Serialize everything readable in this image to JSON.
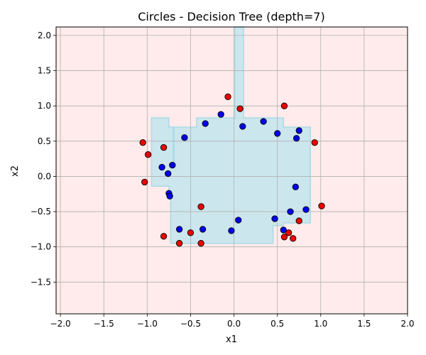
{
  "chart_data": {
    "type": "scatter",
    "title": "Circles - Decision Tree (depth=7)",
    "xlabel": "x1",
    "ylabel": "x2",
    "xlim": [
      -2.05,
      2.0
    ],
    "ylim": [
      -1.95,
      2.12
    ],
    "xticks": [
      -2.0,
      -1.5,
      -1.0,
      -0.5,
      0.0,
      0.5,
      1.0,
      1.5,
      2.0
    ],
    "xtick_labels": [
      "−2.0",
      "−1.5",
      "−1.0",
      "−0.5",
      "0.0",
      "0.5",
      "1.0",
      "1.5",
      "2.0"
    ],
    "yticks": [
      -1.5,
      -1.0,
      -0.5,
      0.0,
      0.5,
      1.0,
      1.5,
      2.0
    ],
    "ytick_labels": [
      "−1.5",
      "−1.0",
      "−0.5",
      "0.0",
      "0.5",
      "1.0",
      "1.5",
      "2.0"
    ],
    "grid": true,
    "background_color": "#ffebeb",
    "region_color": "#cce6ee",
    "region_edge_color": "#a8dbe6",
    "decision_region": [
      [
        0.01,
        2.12
      ],
      [
        0.11,
        2.12
      ],
      [
        0.11,
        0.83
      ],
      [
        0.57,
        0.83
      ],
      [
        0.57,
        0.7
      ],
      [
        0.88,
        0.7
      ],
      [
        0.88,
        -0.66
      ],
      [
        0.57,
        -0.66
      ],
      [
        0.57,
        -0.7
      ],
      [
        0.45,
        -0.7
      ],
      [
        0.45,
        -0.95
      ],
      [
        -0.73,
        -0.95
      ],
      [
        -0.73,
        -0.32
      ],
      [
        -0.75,
        -0.32
      ],
      [
        -0.75,
        -0.14
      ],
      [
        -0.95,
        -0.14
      ],
      [
        -0.95,
        0.83
      ],
      [
        -0.75,
        0.83
      ],
      [
        -0.75,
        0.7
      ],
      [
        -0.73,
        0.7
      ],
      [
        -0.7,
        0.7
      ],
      [
        -0.7,
        0.12
      ],
      [
        -0.69,
        0.12
      ],
      [
        -0.69,
        0.7
      ],
      [
        -0.43,
        0.7
      ],
      [
        -0.43,
        0.83
      ],
      [
        0.01,
        0.83
      ]
    ],
    "series": [
      {
        "color": "#0000ee",
        "points": [
          [
            -0.33,
            0.75
          ],
          [
            -0.15,
            0.88
          ],
          [
            0.1,
            0.71
          ],
          [
            0.34,
            0.78
          ],
          [
            0.5,
            0.61
          ],
          [
            0.75,
            0.65
          ],
          [
            0.72,
            0.54
          ],
          [
            -0.57,
            0.55
          ],
          [
            -0.83,
            0.13
          ],
          [
            -0.71,
            0.16
          ],
          [
            -0.76,
            0.04
          ],
          [
            -0.75,
            -0.24
          ],
          [
            -0.74,
            -0.28
          ],
          [
            0.71,
            -0.15
          ],
          [
            0.83,
            -0.47
          ],
          [
            0.65,
            -0.5
          ],
          [
            0.47,
            -0.6
          ],
          [
            0.05,
            -0.62
          ],
          [
            -0.63,
            -0.75
          ],
          [
            -0.36,
            -0.75
          ],
          [
            -0.03,
            -0.77
          ],
          [
            0.57,
            -0.76
          ]
        ]
      },
      {
        "color": "#ee0000",
        "points": [
          [
            -0.07,
            1.13
          ],
          [
            0.07,
            0.96
          ],
          [
            0.58,
            1.0
          ],
          [
            -1.05,
            0.48
          ],
          [
            -0.99,
            0.31
          ],
          [
            -0.81,
            0.41
          ],
          [
            -1.03,
            -0.08
          ],
          [
            0.93,
            0.48
          ],
          [
            1.01,
            -0.42
          ],
          [
            -0.38,
            -0.43
          ],
          [
            -0.81,
            -0.85
          ],
          [
            -0.63,
            -0.95
          ],
          [
            -0.5,
            -0.8
          ],
          [
            -0.38,
            -0.95
          ],
          [
            0.75,
            -0.63
          ],
          [
            0.63,
            -0.8
          ],
          [
            0.58,
            -0.86
          ],
          [
            0.68,
            -0.88
          ]
        ]
      }
    ]
  }
}
